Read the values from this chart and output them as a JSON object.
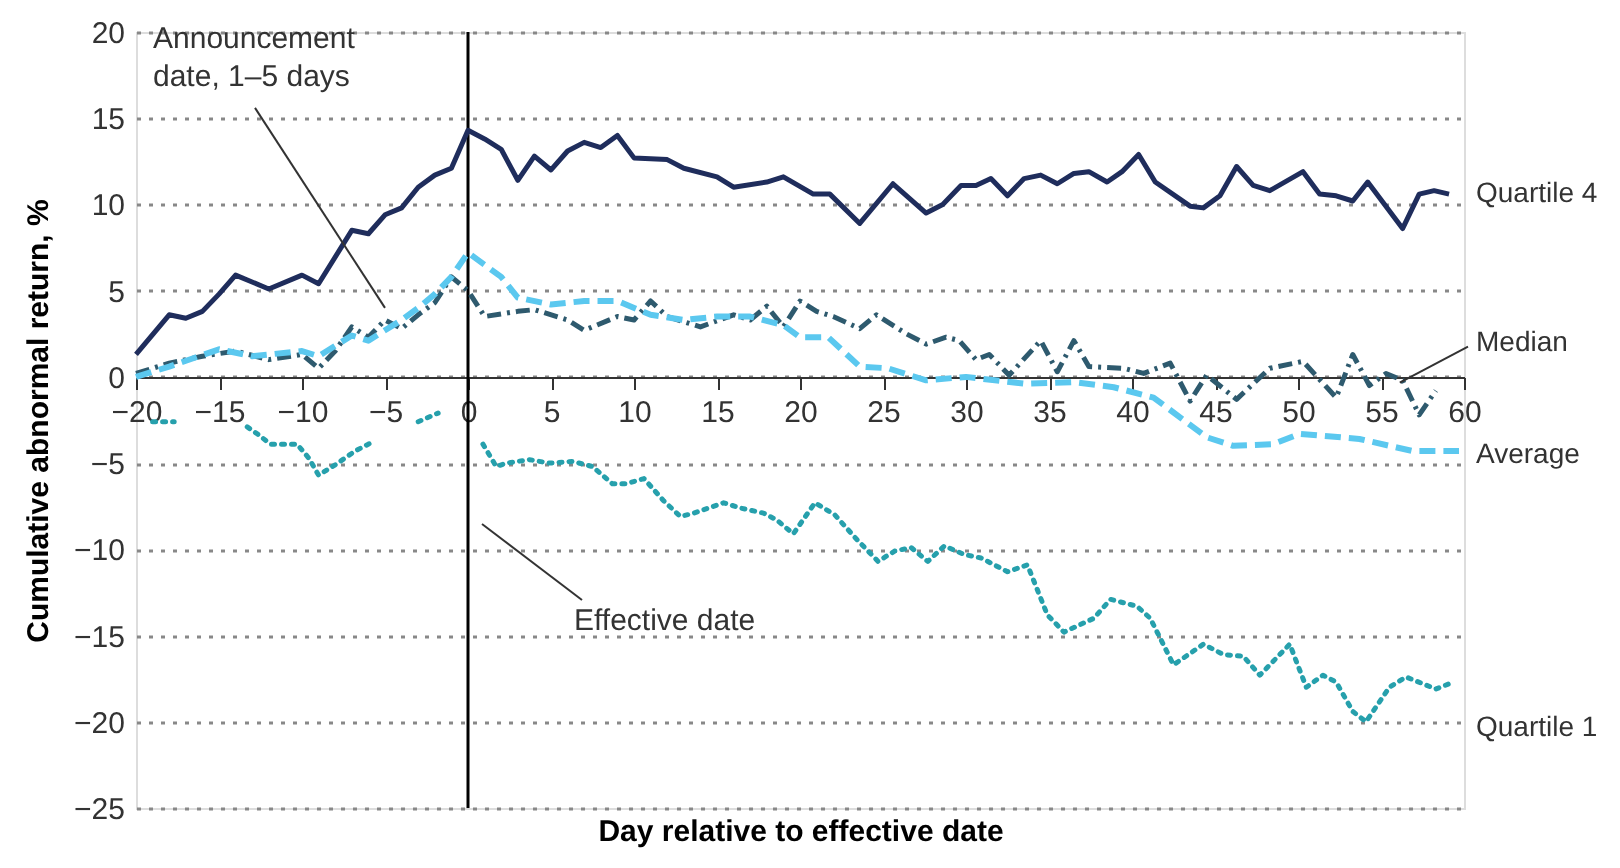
{
  "chart_data": {
    "type": "line",
    "xlabel": "Day relative to effective date",
    "ylabel": "Cumulative abnormal return, %",
    "xlim": [
      -20,
      60
    ],
    "ylim": [
      -25,
      20
    ],
    "xticks": [
      -20,
      -15,
      -10,
      -5,
      0,
      5,
      10,
      15,
      20,
      25,
      30,
      35,
      40,
      45,
      50,
      55,
      60
    ],
    "yticks": [
      -25,
      -20,
      -15,
      -10,
      -5,
      0,
      5,
      10,
      15,
      20
    ],
    "grid": "y",
    "legend": false,
    "marker": "none",
    "ref_lines": [
      {
        "axis": "x",
        "value": 0,
        "label": null,
        "color": "#000000",
        "line_style": "solid"
      }
    ],
    "annotations": [
      {
        "text": "Announcement\ndate, 1–5 days",
        "x": -5,
        "y": 4
      },
      "Effective date"
    ],
    "series": [
      {
        "name": "Quartile 4",
        "color": "#1f2d5c",
        "line_style": "solid",
        "x": [
          -20,
          -18,
          -17,
          -16,
          -15,
          -14,
          -12,
          -10,
          -9,
          -7,
          -6,
          -5,
          -4,
          -3,
          -2,
          -1,
          0,
          1,
          2,
          3,
          4,
          5,
          6,
          7,
          8,
          9,
          10,
          12,
          13,
          15,
          16,
          18,
          19,
          20.8,
          21.8,
          23.6,
          25.6,
          27.6,
          28.6,
          29.7,
          30.6,
          31.5,
          32.5,
          33.5,
          34.5,
          35.5,
          36.5,
          37.4,
          38.5,
          39.4,
          40.4,
          41.4,
          43.5,
          44.3,
          45.3,
          46.3,
          47.3,
          48.3,
          50.3,
          51.3,
          52.3,
          53.3,
          54.2,
          56.3,
          57.3,
          58.2,
          59.1
        ],
        "values": [
          1.3,
          3.6,
          3.4,
          3.8,
          4.8,
          5.9,
          5.1,
          5.9,
          5.4,
          8.5,
          8.3,
          9.4,
          9.8,
          11,
          11.7,
          12.1,
          14.3,
          13.8,
          13.2,
          11.4,
          12.8,
          12,
          13.1,
          13.6,
          13.3,
          14,
          12.7,
          12.6,
          12.1,
          11.6,
          11,
          11.3,
          11.6,
          10.6,
          10.6,
          8.9,
          11.2,
          9.5,
          10,
          11.1,
          11.1,
          11.5,
          10.5,
          11.5,
          11.7,
          11.2,
          11.8,
          11.9,
          11.3,
          11.9,
          12.9,
          11.3,
          9.9,
          9.8,
          10.5,
          12.2,
          11.1,
          10.8,
          11.9,
          10.6,
          10.5,
          10.2,
          11.3,
          8.6,
          10.6,
          10.8,
          10.6
        ]
      },
      {
        "name": "Median",
        "color": "#2e5a6e",
        "line_style": "dashdot",
        "x": [
          -20,
          -18,
          -16,
          -14,
          -12,
          -10,
          -9,
          -8,
          -7,
          -6,
          -5,
          -4,
          -3,
          -2,
          -1,
          0,
          1,
          3,
          4,
          6,
          7,
          9,
          10,
          11,
          12,
          14,
          16,
          17,
          18,
          19,
          20,
          21,
          22,
          23.6,
          24.6,
          26.4,
          27.6,
          28.8,
          29.6,
          30.6,
          31.4,
          32.6,
          34.5,
          35.5,
          36.5,
          37.4,
          39.5,
          40.7,
          42.3,
          43.5,
          44.5,
          46.3,
          48.3,
          50.3,
          52.3,
          53.3,
          54.3,
          55.3,
          56.3,
          57.3,
          58.3
        ],
        "values": [
          0.2,
          0.8,
          1.2,
          1.5,
          1,
          1.3,
          0.5,
          1.5,
          2.9,
          2.3,
          3.3,
          2.8,
          3.6,
          4.3,
          5.8,
          5,
          3.5,
          3.8,
          3.9,
          3.3,
          2.7,
          3.5,
          3.3,
          4.4,
          3.5,
          2.9,
          3.6,
          3.3,
          4.1,
          2.9,
          4.4,
          3.8,
          3.5,
          2.8,
          3.6,
          2.5,
          1.9,
          2.3,
          2.1,
          1,
          1.3,
          0.1,
          2.1,
          0.3,
          2.1,
          0.6,
          0.5,
          0.2,
          0.8,
          -1.4,
          0.1,
          -1.3,
          0.5,
          0.9,
          -1.2,
          1.3,
          -0.5,
          0.2,
          -0.2,
          -2.2,
          -0.8
        ]
      },
      {
        "name": "Average",
        "color": "#5bc8ef",
        "line_style": "dashed",
        "x": [
          -20,
          -18,
          -15,
          -13,
          -10,
          -9,
          -7,
          -6,
          -5,
          -4,
          -3,
          -2,
          -1,
          0,
          2,
          3,
          5,
          7,
          9,
          11,
          13,
          15,
          17,
          19,
          20,
          21.7,
          23.6,
          25.3,
          27.6,
          30,
          33.6,
          36.5,
          38.9,
          41.3,
          44.5,
          46.1,
          48.5,
          50.1,
          53.7,
          56.9,
          59.7
        ],
        "values": [
          0,
          0.6,
          1.6,
          1.2,
          1.5,
          1.2,
          2.4,
          2.1,
          2.7,
          3.3,
          4,
          4.8,
          5.8,
          7.2,
          5.8,
          4.6,
          4.2,
          4.4,
          4.4,
          3.6,
          3.3,
          3.5,
          3.5,
          3,
          2.3,
          2.3,
          0.6,
          0.5,
          -0.2,
          0,
          -0.4,
          -0.3,
          -0.6,
          -1.2,
          -3.5,
          -4,
          -3.9,
          -3.3,
          -3.6,
          -4.3,
          -4.3
        ]
      },
      {
        "name": "Quartile 1",
        "color": "#26a0ac",
        "line_style": "dotted",
        "x": [
          -19,
          -17.7,
          -16,
          -13.3,
          -12.7,
          -11.9,
          -10.3,
          -9.6,
          -9,
          -8,
          -6.8,
          -5.8,
          -4.5,
          -3,
          -1.8,
          -0.5,
          0.9,
          1.7,
          2.3,
          3.7,
          4.9,
          6.3,
          7.5,
          8.7,
          9.5,
          10.6,
          11.8,
          12.8,
          13.6,
          15.4,
          16.4,
          17.8,
          18.6,
          19.6,
          20.9,
          22.1,
          23.3,
          24.7,
          25.7,
          26.7,
          27.7,
          28.7,
          29.9,
          30.9,
          32.5,
          33.7,
          34.9,
          35.9,
          37.7,
          38.7,
          40.3,
          41.1,
          42.5,
          44.3,
          45.5,
          46.7,
          47.7,
          49.5,
          50.5,
          51.5,
          52.3,
          53.3,
          54.1,
          55.5,
          56.5,
          58.3,
          59.1
        ],
        "values": [
          -2.6,
          -2.6,
          null,
          -2.9,
          -3.3,
          -3.9,
          -3.9,
          -4.7,
          -5.7,
          -5.1,
          -4.3,
          -3.8,
          null,
          -2.6,
          -2.1,
          null,
          -3.9,
          -5.2,
          -5,
          -4.8,
          -5,
          -4.9,
          -5.2,
          -6.2,
          -6.2,
          -5.9,
          -7.2,
          -8.1,
          -7.9,
          -7.3,
          -7.6,
          -7.9,
          -8.3,
          -9.1,
          -7.3,
          -8,
          -9.3,
          -10.7,
          -10.1,
          -9.9,
          -10.7,
          -9.8,
          -10.3,
          -10.5,
          -11.3,
          -10.9,
          -13.8,
          -14.8,
          -14,
          -12.9,
          -13.3,
          -14,
          -16.7,
          -15.5,
          -16.1,
          -16.2,
          -17.3,
          -15.5,
          -18,
          -17.3,
          -17.7,
          -19.4,
          -20,
          -18,
          -17.4,
          -18.1,
          -17.8
        ]
      }
    ]
  }
}
